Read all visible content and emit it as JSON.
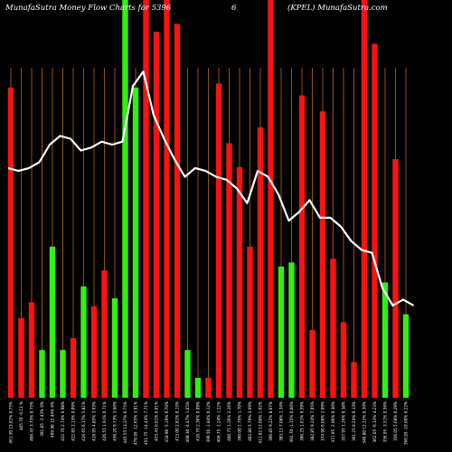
{
  "header": {
    "left": "MunafaSutra  Money Flow  Charts for 5396",
    "middle": "6",
    "right": "(KPEL) MunafaSutra.com"
  },
  "colors": {
    "background": "#000000",
    "bar_up": "#33ee11",
    "bar_down": "#ff1111",
    "grid": "#b86a1a",
    "price_line": "#ffffff"
  },
  "chart_data": {
    "type": "bar",
    "title": "MunafaSutra  Money Flow  Charts for 5396 6 (KPEL) MunafaSutra.com",
    "bars": [
      {
        "label": "461.30 13.81% 0.75%",
        "value": 78,
        "dir": "down"
      },
      {
        "label": "405.70 -0.13 %",
        "value": 20,
        "dir": "down"
      },
      {
        "label": "406.45 3.73% 0.75%",
        "value": 24,
        "dir": "down"
      },
      {
        "label": "391.85 -2.43% 0%",
        "value": 12,
        "dir": "up"
      },
      {
        "label": "409.90 12.44% 0%",
        "value": 38,
        "dir": "up"
      },
      {
        "label": "422.70 2.74% 0.98%",
        "value": 12,
        "dir": "up"
      },
      {
        "label": "422.85 2.13% 0.09%",
        "value": 15,
        "dir": "down"
      },
      {
        "label": "416.65 6.17% 5.81%",
        "value": 28,
        "dir": "up"
      },
      {
        "label": "419.95 4.85% 3.93%",
        "value": 23,
        "dir": "down"
      },
      {
        "label": "426.55 1.91% 0.71%",
        "value": 32,
        "dir": "down"
      },
      {
        "label": "436.20 9.73% 3.00%",
        "value": 25,
        "dir": "up"
      },
      {
        "label": "445.55 13.37% 6.75%",
        "value": 100,
        "dir": "up"
      },
      {
        "label": "478.95 -12.65% 3.91%",
        "value": 78,
        "dir": "up"
      },
      {
        "label": "451.75 -14.44% 7.71%",
        "value": 100,
        "dir": "down"
      },
      {
        "label": "433.45 0.01% 0.01%",
        "value": 92,
        "dir": "down"
      },
      {
        "label": "418.90 -5.19% 6.70%",
        "value": 100,
        "dir": "down"
      },
      {
        "label": "413.00 2.81% 0.15%",
        "value": 94,
        "dir": "down"
      },
      {
        "label": "408.30 -4.47% 1.05%",
        "value": 12,
        "dir": "up"
      },
      {
        "label": "410.70 2.36% 0.09%",
        "value": 5,
        "dir": "up"
      },
      {
        "label": "399.50 -1.84% 0.12%",
        "value": 5,
        "dir": "down"
      },
      {
        "label": "406.75 -1.24% 1.22%",
        "value": 79,
        "dir": "down"
      },
      {
        "label": "400.75 1.26% 2.26%",
        "value": 64,
        "dir": "down"
      },
      {
        "label": "390.00 1.70% 1.70%",
        "value": 58,
        "dir": "down"
      },
      {
        "label": "402.80 5.79% 3.09%",
        "value": 38,
        "dir": "down"
      },
      {
        "label": "411.02 12.00% 1.92%",
        "value": 68,
        "dir": "down"
      },
      {
        "label": "396.85 9.22% 8.07%",
        "value": 100,
        "dir": "down"
      },
      {
        "label": "383.15 7.08% 1.34%",
        "value": 33,
        "dir": "up"
      },
      {
        "label": "392.70 -1.15% 0.00%",
        "value": 34,
        "dir": "up"
      },
      {
        "label": "390.25 1.01% 6.59%",
        "value": 76,
        "dir": "down"
      },
      {
        "label": "382.85 9.24% 7.05%",
        "value": 17,
        "dir": "down"
      },
      {
        "label": "374.90 6.08% 2.09%",
        "value": 72,
        "dir": "down"
      },
      {
        "label": "371.95 -2.96% 0.30%",
        "value": 35,
        "dir": "down"
      },
      {
        "label": "357.95 1.26% 0.38%",
        "value": 19,
        "dir": "down"
      },
      {
        "label": "361.25 0.24% 0.13%",
        "value": 9,
        "dir": "down"
      },
      {
        "label": "340.80 12.22% 0.30%",
        "value": 100,
        "dir": "down"
      },
      {
        "label": "362.05 -6.33% 4.23%",
        "value": 89,
        "dir": "down"
      },
      {
        "label": "356.95 -3.51% 0.56%",
        "value": 29,
        "dir": "up"
      },
      {
        "label": "356.05 5.68% 6.29%",
        "value": 60,
        "dir": "down"
      },
      {
        "label": "366.85 -10.60% 6.22%",
        "value": 21,
        "dir": "up"
      }
    ],
    "price": [
      413,
      412,
      413,
      415,
      421,
      424,
      423,
      419,
      420,
      422,
      421,
      422,
      441,
      446,
      431,
      423,
      416,
      410,
      413,
      412,
      410,
      409,
      406,
      401,
      412,
      410,
      404,
      395,
      398,
      402,
      396,
      396,
      393,
      388,
      385,
      384,
      372,
      366,
      368,
      366
    ],
    "price_range": [
      340,
      455
    ],
    "value_range": [
      0,
      100
    ],
    "grid": true
  }
}
